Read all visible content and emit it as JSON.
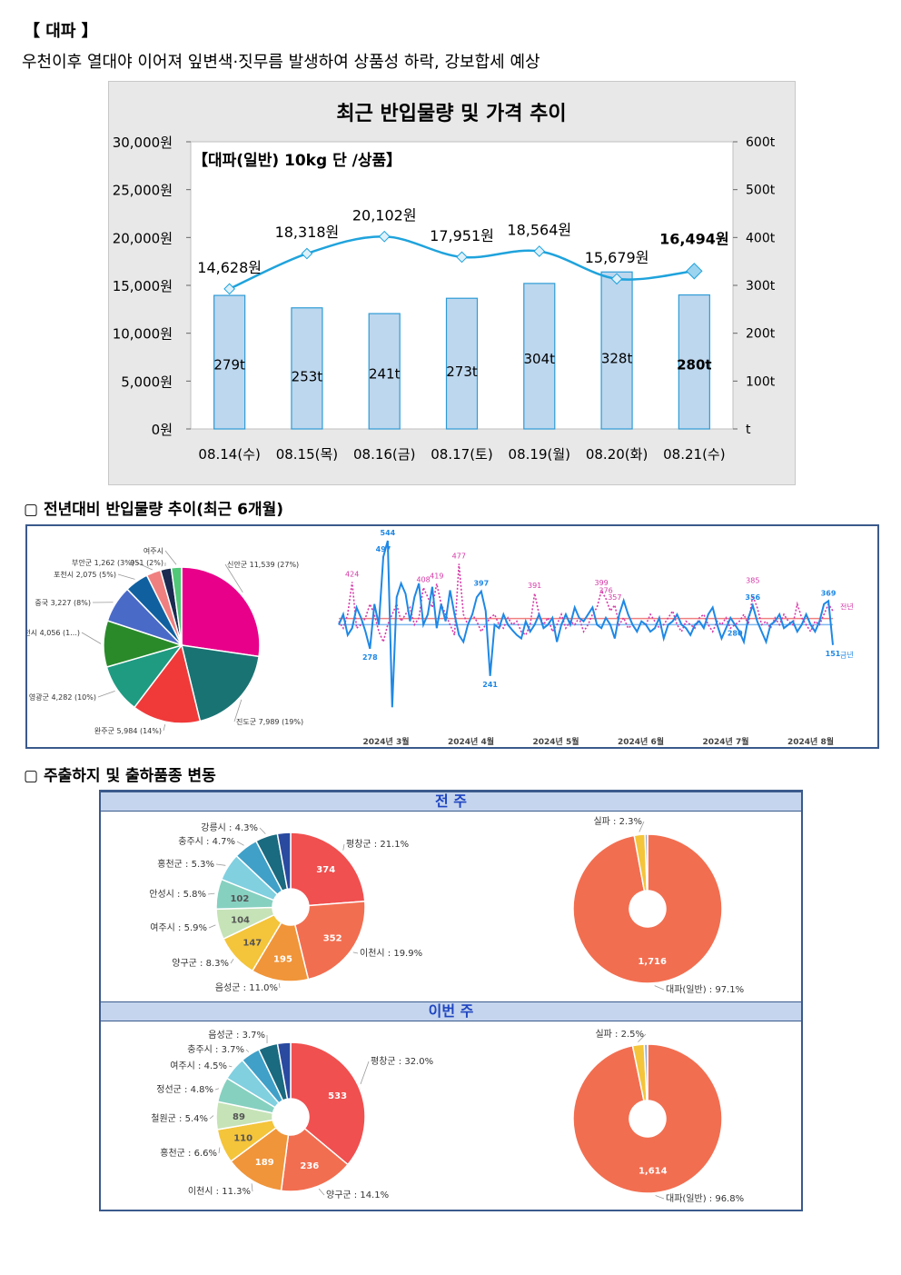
{
  "section": {
    "title": "【 대파 】",
    "description": "우천이후 열대야 이어져 잎변색·짓무름 발생하여 상품성 하락, 강보합세 예상"
  },
  "subsections": {
    "yoy": "▢ 전년대비 반입물량 추이(최근 6개월)",
    "shipping": "▢ 주출하지 및 출하품종 변동"
  },
  "chart_data": [
    {
      "type": "bar+line",
      "title": "최근 반입물량 및 가격 추이",
      "subtitle": "【대파(일반) 10kg 단 /상품】",
      "categories": [
        "08.14(수)",
        "08.15(목)",
        "08.16(금)",
        "08.17(토)",
        "08.19(월)",
        "08.20(화)",
        "08.21(수)"
      ],
      "series": [
        {
          "values": [
            279,
            253,
            241,
            273,
            304,
            328,
            280
          ],
          "labels": [
            "279t",
            "253t",
            "241t",
            "273t",
            "304t",
            "328t",
            "280t"
          ],
          "color": "#bdd7ee"
        },
        {
          "values": [
            14628,
            18318,
            20102,
            17951,
            18564,
            15679,
            16494
          ],
          "labels": [
            "14,628원",
            "18,318원",
            "20,102원",
            "17,951원",
            "18,564원",
            "15,679원",
            "16,494원"
          ],
          "color": "#1fa3dc"
        }
      ],
      "y_left": {
        "range": [
          0,
          30000
        ],
        "ticks": [
          "0원",
          "5,000원",
          "10,000원",
          "15,000원",
          "20,000원",
          "25,000원",
          "30,000원"
        ]
      },
      "y_right": {
        "range": [
          0,
          600
        ],
        "ticks": [
          "t",
          "100t",
          "200t",
          "300t",
          "400t",
          "500t",
          "600t"
        ]
      }
    },
    {
      "type": "pie",
      "slices": [
        {
          "label": "신안군 11,539 (27%)",
          "value": 11539,
          "color": "#e8008a"
        },
        {
          "label": "진도군 7,989 (19%)",
          "value": 7989,
          "color": "#1a7373"
        },
        {
          "label": "완주군 5,984 (14%)",
          "value": 5984,
          "color": "#f03a3a"
        },
        {
          "label": "영광군 4,282 (10%)",
          "value": 4282,
          "color": "#1f9b82"
        },
        {
          "label": "이천시 4,056 (1...)",
          "value": 4056,
          "color": "#2a8a2a"
        },
        {
          "label": "중국 3,227 (8%)",
          "value": 3227,
          "color": "#4a6ac8"
        },
        {
          "label": "포천시 2,075 (5%)",
          "value": 2075,
          "color": "#1060a0"
        },
        {
          "label": "부안군 1,262 (3%)",
          "value": 1262,
          "color": "#f08080"
        },
        {
          "label": "951 (2%)",
          "value": 951,
          "color": "#1a2a50"
        },
        {
          "label": "여주시",
          "value": 900,
          "color": "#50c878"
        }
      ]
    },
    {
      "type": "line",
      "x_ticks": [
        "2024년 3월",
        "2024년 4월",
        "2024년 5월",
        "2024년 6월",
        "2024년 7월",
        "2024년 8월"
      ],
      "series": [
        {
          "name": "금년",
          "color": "#1e88e5",
          "values": [
            300,
            330,
            270,
            290,
            350,
            320,
            280,
            230,
            360,
            300,
            497,
            544,
            60,
            380,
            420,
            390,
            310,
            380,
            420,
            300,
            330,
            410,
            290,
            360,
            310,
            400,
            330,
            270,
            250,
            300,
            330,
            380,
            397,
            340,
            151,
            300,
            290,
            330,
            300,
            284,
            270,
            260,
            310,
            280,
            300,
            330,
            290,
            300,
            320,
            250,
            300,
            330,
            300,
            350,
            320,
            310,
            330,
            350,
            300,
            290,
            320,
            300,
            260,
            330,
            370,
            330,
            300,
            280,
            310,
            300,
            280,
            290,
            320,
            260,
            300,
            310,
            330,
            300,
            290,
            270,
            300,
            310,
            290,
            330,
            350,
            300,
            260,
            290,
            320,
            300,
            280,
            250,
            320,
            356,
            310,
            280,
            250,
            300,
            310,
            330,
            290,
            300,
            310,
            280,
            300,
            330,
            300,
            280,
            310,
            360,
            369,
            241
          ]
        },
        {
          "name": "전년",
          "color": "#d63aa8",
          "values": [
            310,
            290,
            330,
            424,
            290,
            300,
            320,
            360,
            330,
            280,
            250,
            300,
            330,
            360,
            310,
            330,
            350,
            300,
            320,
            408,
            380,
            350,
            419,
            360,
            330,
            300,
            270,
            477,
            330,
            300,
            330,
            310,
            280,
            300,
            320,
            330,
            300,
            290,
            320,
            300,
            310,
            280,
            270,
            300,
            391,
            330,
            300,
            320,
            280,
            300,
            330,
            290,
            310,
            300,
            320,
            280,
            300,
            330,
            350,
            399,
            376,
            340,
            357,
            300,
            320,
            290,
            300,
            280,
            310,
            300,
            330,
            310,
            290,
            300,
            320,
            340,
            300,
            280,
            310,
            300,
            290,
            320,
            330,
            300,
            280,
            310,
            300,
            320,
            290,
            300,
            310,
            330,
            300,
            385,
            350,
            300,
            310,
            290,
            320,
            300,
            330,
            310,
            300,
            360,
            320,
            300,
            280,
            310,
            300,
            330,
            360,
            340
          ]
        }
      ],
      "annotations": [
        "424",
        "497",
        "544",
        "408",
        "419",
        "477",
        "397",
        "391",
        "399",
        "376",
        "357",
        "356",
        "385",
        "369",
        "241",
        "151",
        "278",
        "280"
      ],
      "legend": [
        "전년",
        "금년"
      ]
    },
    {
      "type": "pie",
      "panel": "전 주",
      "slices": [
        {
          "label": "평창군 : 21.1%",
          "value": 374,
          "text": "374",
          "color": "#f05050"
        },
        {
          "label": "이천시 : 19.9%",
          "value": 352,
          "text": "352",
          "color": "#f26e50"
        },
        {
          "label": "음성군 : 11.0%",
          "value": 195,
          "text": "195",
          "color": "#f0953a"
        },
        {
          "label": "양구군 : 8.3%",
          "value": 147,
          "text": "147",
          "color": "#f4c43a"
        },
        {
          "label": "여주시 : 5.9%",
          "value": 104,
          "text": "104",
          "color": "#c6e3b8"
        },
        {
          "label": "안성시 : 5.8%",
          "value": 102,
          "text": "102",
          "color": "#86d0c0"
        },
        {
          "label": "홍천군 : 5.3%",
          "value": 94,
          "text": "",
          "color": "#80d0e0"
        },
        {
          "label": "충주시 : 4.7%",
          "value": 83,
          "text": "",
          "color": "#40a0c8"
        },
        {
          "label": "강릉시 : 4.3%",
          "value": 76,
          "text": "",
          "color": "#1a6a80"
        },
        {
          "label": "",
          "value": 45,
          "text": "",
          "color": "#2a4aa0"
        }
      ]
    },
    {
      "type": "pie",
      "panel": "전 주",
      "slices": [
        {
          "label": "대파(일반) : 97.1%",
          "value": 1716,
          "text": "1,716",
          "color": "#f26e50"
        },
        {
          "label": "실파 : 2.3%",
          "value": 41,
          "text": "",
          "color": "#f4c43a"
        },
        {
          "label": "",
          "value": 10,
          "text": "",
          "color": "#9ab0d0"
        }
      ]
    },
    {
      "type": "pie",
      "panel": "이번 주",
      "slices": [
        {
          "label": "평창군 : 32.0%",
          "value": 533,
          "text": "533",
          "color": "#f05050"
        },
        {
          "label": "양구군 : 14.1%",
          "value": 236,
          "text": "236",
          "color": "#f26e50"
        },
        {
          "label": "이천시 : 11.3%",
          "value": 189,
          "text": "189",
          "color": "#f0953a"
        },
        {
          "label": "홍천군 : 6.6%",
          "value": 110,
          "text": "110",
          "color": "#f4c43a"
        },
        {
          "label": "철원군 : 5.4%",
          "value": 89,
          "text": "89",
          "color": "#c6e3b8"
        },
        {
          "label": "정선군 : 4.8%",
          "value": 80,
          "text": "",
          "color": "#86d0c0"
        },
        {
          "label": "여주시 : 4.5%",
          "value": 75,
          "text": "",
          "color": "#80d0e0"
        },
        {
          "label": "충주시 : 3.7%",
          "value": 62,
          "text": "",
          "color": "#40a0c8"
        },
        {
          "label": "음성군 : 3.7%",
          "value": 62,
          "text": "",
          "color": "#1a6a80"
        },
        {
          "label": "",
          "value": 42,
          "text": "",
          "color": "#2a4aa0"
        }
      ]
    },
    {
      "type": "pie",
      "panel": "이번 주",
      "slices": [
        {
          "label": "대파(일반) : 96.8%",
          "value": 1614,
          "text": "1,614",
          "color": "#f26e50"
        },
        {
          "label": "실파 : 2.5%",
          "value": 42,
          "text": "",
          "color": "#f4c43a"
        },
        {
          "label": "",
          "value": 12,
          "text": "",
          "color": "#9ab0d0"
        }
      ]
    }
  ],
  "panels": {
    "prev": "전 주",
    "curr": "이번 주"
  }
}
